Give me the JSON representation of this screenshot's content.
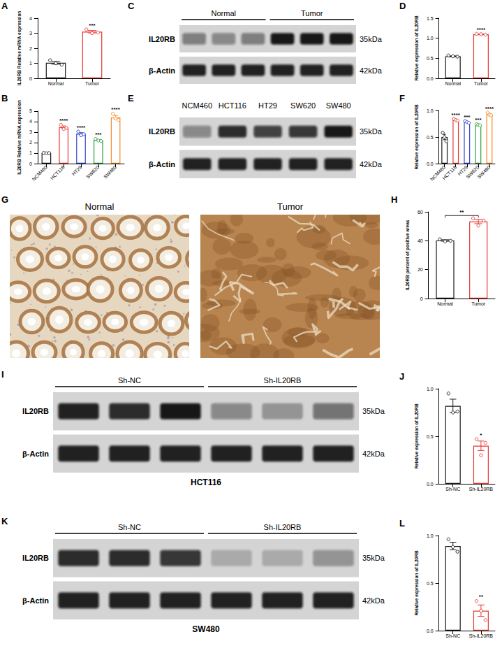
{
  "chart_data": [
    {
      "panel": "A",
      "type": "bar",
      "y_label": "IL20RB Relative mRNA expression",
      "categories": [
        "Normal",
        "Tumor"
      ],
      "values": [
        1.03,
        3.1
      ],
      "errors": [
        0.09,
        0.08
      ],
      "points": [
        [
          1.2,
          1.0,
          0.9
        ],
        [
          3.25,
          3.0,
          3.05
        ]
      ],
      "colors": [
        "#1a1a1a",
        "#e53935"
      ],
      "annotations": [
        null,
        "***"
      ],
      "ylim": [
        0,
        4
      ],
      "yticks": [
        0,
        1,
        2,
        3,
        4
      ],
      "grid": false
    },
    {
      "panel": "B",
      "type": "bar",
      "y_label": "IL20RB Relative mRNA expression",
      "categories": [
        "NCM460",
        "HCT116",
        "HT29",
        "SW620",
        "SW480"
      ],
      "values": [
        1.0,
        3.47,
        2.85,
        2.23,
        4.4
      ],
      "errors": [
        0.02,
        0.12,
        0.1,
        0.06,
        0.18
      ],
      "points": [
        [
          1.02,
          0.98,
          1.0
        ],
        [
          3.7,
          3.3,
          3.4
        ],
        [
          3.05,
          2.7,
          2.8
        ],
        [
          2.35,
          2.2,
          2.15
        ],
        [
          4.75,
          4.3,
          4.15
        ]
      ],
      "colors": [
        "#1a1a1a",
        "#e53935",
        "#3344cc",
        "#2e9e3e",
        "#f08a24"
      ],
      "annotations": [
        null,
        "****",
        "****",
        "***",
        "****"
      ],
      "ylim": [
        0,
        5
      ],
      "yticks": [
        0,
        1,
        2,
        3,
        4,
        5
      ],
      "grid": false
    },
    {
      "panel": "D",
      "type": "bar",
      "y_label": "Relative expression of IL20RB",
      "categories": [
        "Normal",
        "Tumor"
      ],
      "values": [
        0.55,
        1.1
      ],
      "errors": [
        0.01,
        0.006
      ],
      "points": [
        [
          0.57,
          0.55,
          0.54
        ],
        [
          1.11,
          1.1,
          1.09
        ]
      ],
      "colors": [
        "#1a1a1a",
        "#e53935"
      ],
      "annotations": [
        null,
        "****"
      ],
      "ylim": [
        0,
        1.5
      ],
      "yticks": [
        {
          "value": 0,
          "label": "0.0"
        },
        0.5,
        {
          "value": 1,
          "label": "1.0"
        },
        1.5
      ],
      "grid": false
    },
    {
      "panel": "F",
      "type": "bar",
      "y_label": "Relative expression of IL20RB",
      "categories": [
        "NCM460",
        "HCT116",
        "HT29",
        "SW620",
        "SW480"
      ],
      "values": [
        0.5,
        0.82,
        0.78,
        0.73,
        0.93
      ],
      "errors": [
        0.05,
        0.01,
        0.01,
        0.01,
        0.015
      ],
      "points": [
        [
          0.58,
          0.5,
          0.42
        ],
        [
          0.84,
          0.82,
          0.81
        ],
        [
          0.8,
          0.78,
          0.77
        ],
        [
          0.74,
          0.73,
          0.72
        ],
        [
          0.96,
          0.92,
          0.91
        ]
      ],
      "colors": [
        "#1a1a1a",
        "#e53935",
        "#3344cc",
        "#2e9e3e",
        "#f08a24"
      ],
      "annotations": [
        null,
        "****",
        "***",
        "***",
        "****"
      ],
      "ylim": [
        0,
        1
      ],
      "yticks": [
        {
          "value": 0,
          "label": "0.0"
        },
        0.5,
        {
          "value": 1,
          "label": "1.0"
        }
      ],
      "grid": false
    },
    {
      "panel": "H",
      "type": "bar",
      "y_label": "IL20RB percent of positive areas",
      "categories": [
        "Normal",
        "Tumor"
      ],
      "values": [
        40.2,
        53.3
      ],
      "errors": [
        0.5,
        1.5
      ],
      "points": [
        [
          41,
          39.5,
          40
        ],
        [
          55.5,
          50.5,
          54
        ]
      ],
      "colors": [
        "#1a1a1a",
        "#e53935"
      ],
      "comparison": {
        "categories": [
          "Normal",
          "Tumor"
        ],
        "label": "**"
      },
      "ylim": [
        0,
        60
      ],
      "yticks": [
        0,
        20,
        40,
        60
      ],
      "grid": false
    },
    {
      "panel": "J",
      "type": "bar",
      "y_label": "Relative expression of IL20RB",
      "categories": [
        "Sh-NC",
        "Sh-IL20RB"
      ],
      "values": [
        0.82,
        0.4
      ],
      "errors": [
        0.07,
        0.05
      ],
      "points": [
        [
          0.95,
          0.75,
          0.76
        ],
        [
          0.47,
          0.3,
          0.43
        ]
      ],
      "colors": [
        "#1a1a1a",
        "#e53935"
      ],
      "annotations": [
        null,
        "*"
      ],
      "ylim": [
        0,
        1
      ],
      "yticks": [
        {
          "value": 0,
          "label": "0.0"
        },
        0.5,
        {
          "value": 1,
          "label": "1.0"
        }
      ],
      "grid": false
    },
    {
      "panel": "L",
      "type": "bar",
      "y_label": "Relative expression of IL20RB",
      "categories": [
        "Sh-NC",
        "Sh-IL20RB"
      ],
      "values": [
        0.89,
        0.21
      ],
      "errors": [
        0.04,
        0.06
      ],
      "points": [
        [
          0.96,
          0.88,
          0.83
        ],
        [
          0.31,
          0.21,
          0.11
        ]
      ],
      "colors": [
        "#1a1a1a",
        "#e53935"
      ],
      "annotations": [
        null,
        "**"
      ],
      "ylim": [
        0,
        1
      ],
      "yticks": [
        {
          "value": 0,
          "label": "0.0"
        },
        0.5,
        {
          "value": 1,
          "label": "1.0"
        }
      ],
      "grid": false
    }
  ],
  "blots": [
    {
      "panel": "C",
      "groups": [
        {
          "label": "Normal",
          "lanes": 3
        },
        {
          "label": "Tumor",
          "lanes": 3
        }
      ],
      "rows": [
        {
          "protein": "IL20RB",
          "size": "35kDa",
          "intensity": [
            0.45,
            0.4,
            0.45,
            0.95,
            0.95,
            0.95
          ]
        },
        {
          "protein": "β-Actin",
          "size": "42kDa",
          "intensity": [
            0.9,
            0.9,
            0.9,
            0.9,
            0.9,
            0.9
          ]
        }
      ]
    },
    {
      "panel": "E",
      "groups": [
        {
          "label": "NCM460",
          "lanes": 1
        },
        {
          "label": "HCT116",
          "lanes": 1
        },
        {
          "label": "HT29",
          "lanes": 1
        },
        {
          "label": "SW620",
          "lanes": 1
        },
        {
          "label": "SW480",
          "lanes": 1
        }
      ],
      "rows": [
        {
          "protein": "IL20RB",
          "size": "35kDa",
          "intensity": [
            0.4,
            0.85,
            0.75,
            0.8,
            0.95
          ]
        },
        {
          "protein": "β-Actin",
          "size": "42kDa",
          "intensity": [
            0.9,
            0.9,
            0.9,
            0.9,
            0.9
          ]
        }
      ]
    },
    {
      "panel": "I",
      "groups": [
        {
          "label": "Sh-NC",
          "lanes": 3
        },
        {
          "label": "Sh-IL20RB",
          "lanes": 3
        }
      ],
      "caption": "HCT116",
      "rows": [
        {
          "protein": "IL20RB",
          "size": "35kDa",
          "intensity": [
            0.9,
            0.85,
            0.95,
            0.4,
            0.3,
            0.5
          ]
        },
        {
          "protein": "β-Actin",
          "size": "42kDa",
          "intensity": [
            0.9,
            0.9,
            0.9,
            0.9,
            0.9,
            0.9
          ]
        }
      ]
    },
    {
      "panel": "K",
      "groups": [
        {
          "label": "Sh-NC",
          "lanes": 3
        },
        {
          "label": "Sh-IL20RB",
          "lanes": 3
        }
      ],
      "caption": "SW480",
      "rows": [
        {
          "protein": "IL20RB",
          "size": "35kDa",
          "intensity": [
            0.85,
            0.85,
            0.8,
            0.2,
            0.2,
            0.35
          ]
        },
        {
          "protein": "β-Actin",
          "size": "42kDa",
          "intensity": [
            0.9,
            0.9,
            0.9,
            0.9,
            0.9,
            0.9
          ]
        }
      ]
    }
  ],
  "ihc": {
    "panel": "G",
    "images": [
      "Normal",
      "Tumor"
    ]
  }
}
